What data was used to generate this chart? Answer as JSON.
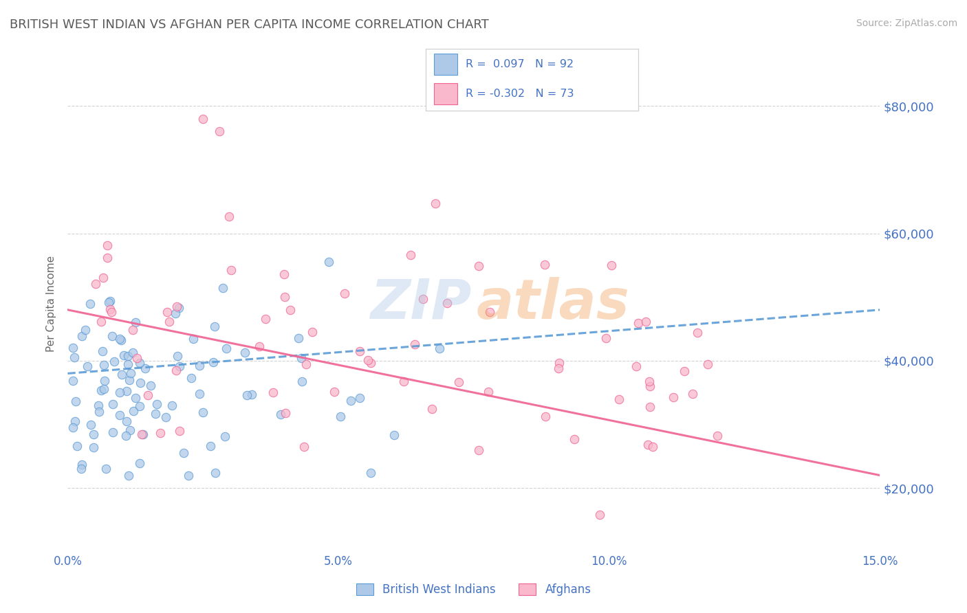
{
  "title": "BRITISH WEST INDIAN VS AFGHAN PER CAPITA INCOME CORRELATION CHART",
  "source": "Source: ZipAtlas.com",
  "ylabel": "Per Capita Income",
  "xlim": [
    0.0,
    0.15
  ],
  "ylim": [
    10000,
    88000
  ],
  "yticks": [
    20000,
    40000,
    60000,
    80000
  ],
  "ytick_labels": [
    "$20,000",
    "$40,000",
    "$60,000",
    "$80,000"
  ],
  "xticks": [
    0.0,
    0.05,
    0.1,
    0.15
  ],
  "xtick_labels": [
    "0.0%",
    "5.0%",
    "10.0%",
    "15.0%"
  ],
  "blue_color": "#5b9bd5",
  "pink_color": "#f06292",
  "blue_fill": "#aec9e8",
  "pink_fill": "#f9b8cc",
  "axis_label_color": "#4472c4",
  "title_color": "#595959",
  "grid_color": "#c8c8c8",
  "legend_label1": "British West Indians",
  "legend_label2": "Afghans",
  "blue_R": 0.097,
  "blue_N": 92,
  "pink_R": -0.302,
  "pink_N": 73,
  "blue_line_y0": 38000,
  "blue_line_y1": 48000,
  "pink_line_y0": 48000,
  "pink_line_y1": 22000,
  "watermark_zip_color": "#aec9e8",
  "watermark_atlas_color": "#f4a460"
}
